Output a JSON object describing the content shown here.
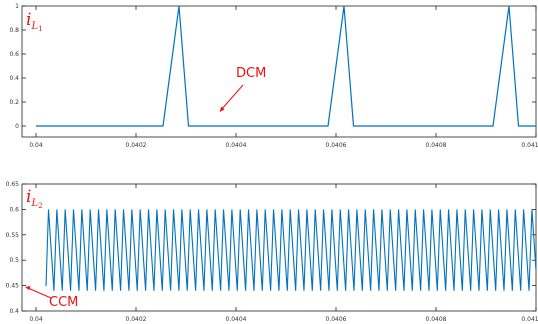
{
  "chart_data": [
    {
      "type": "line",
      "xlim": [
        0.04,
        0.041
      ],
      "ylim": [
        0,
        1
      ],
      "xticks": [
        "0.04",
        "0.0402",
        "0.0404",
        "0.0406",
        "0.0408",
        "0.041"
      ],
      "yticks": [
        "0",
        "0.2",
        "0.4",
        "0.6",
        "0.8",
        "1"
      ],
      "label_main": "i",
      "label_sub": "L",
      "label_subsub": "1",
      "annotation": "DCM",
      "annotation_target": {
        "x": 0.04037,
        "y": 0
      },
      "grid": false,
      "series": [
        {
          "x": [
            0.04,
            0.040254,
            0.040286,
            0.040305,
            0.040584,
            0.040616,
            0.040635,
            0.040914,
            0.040946,
            0.040965,
            0.041
          ],
          "y": [
            0,
            0,
            1,
            0,
            0,
            1,
            0,
            0,
            1,
            0,
            0
          ],
          "color": "#0072bd"
        }
      ]
    },
    {
      "type": "line",
      "xlim": [
        0.04,
        0.041
      ],
      "ylim": [
        0.4,
        0.65
      ],
      "xticks": [
        "0.04",
        "0.0402",
        "0.0404",
        "0.0406",
        "0.0408",
        "0.041"
      ],
      "yticks": [
        "0.4",
        "0.45",
        "0.5",
        "0.55",
        "0.6",
        "0.65"
      ],
      "label_main": "i",
      "label_sub": "L",
      "label_subsub": "2",
      "annotation": "CCM",
      "annotation_target": {
        "x": 0.04,
        "y": 0.449
      },
      "grid": false,
      "series": [
        {
          "type": "triangle_wave",
          "x_start": 0.04,
          "x_end": 0.041,
          "first_point": {
            "x": 0.04002,
            "y": 0.449
          },
          "first_peak_x": 0.040025,
          "period": 1.667e-05,
          "peak_fraction": 0.35,
          "ymin": 0.44,
          "ymax": 0.6,
          "color": "#0072bd"
        }
      ]
    }
  ]
}
